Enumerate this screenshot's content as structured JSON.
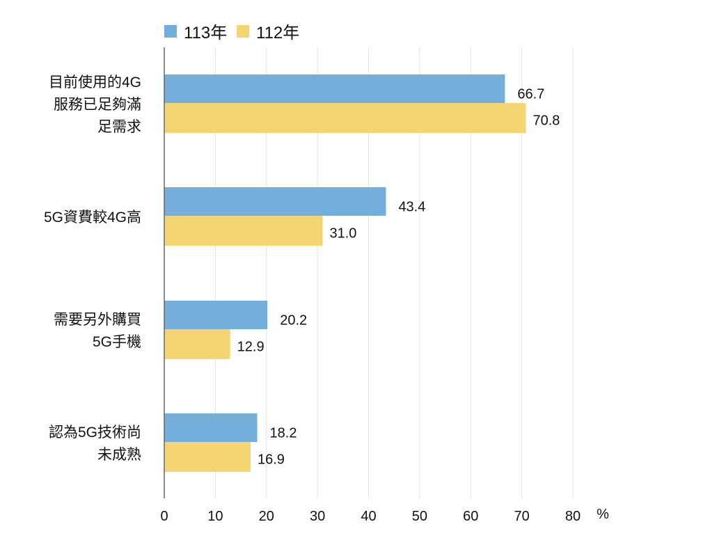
{
  "chart_data": {
    "type": "bar",
    "orientation": "horizontal",
    "categories": [
      [
        "目前使用的4G",
        "服務已足夠滿",
        "足需求"
      ],
      [
        "5G資費較4G高"
      ],
      [
        "需要另外購買",
        "5G手機"
      ],
      [
        "認為5G技術尚",
        "未成熟"
      ]
    ],
    "series": [
      {
        "name": "113年",
        "color": "#74aedb",
        "values": [
          66.7,
          43.4,
          20.2,
          18.2
        ]
      },
      {
        "name": "112年",
        "color": "#f5d472",
        "values": [
          70.8,
          31.0,
          12.9,
          16.9
        ]
      }
    ],
    "value_labels": [
      [
        "66.7",
        "43.4",
        "20.2",
        "18.2"
      ],
      [
        "70.8",
        "31.0",
        "12.9",
        "16.9"
      ]
    ],
    "xlim": [
      0,
      80
    ],
    "xticks": [
      "0",
      "10",
      "20",
      "30",
      "40",
      "50",
      "60",
      "70",
      "80"
    ],
    "xunit": "%",
    "grid": true,
    "legend": "top-left"
  }
}
